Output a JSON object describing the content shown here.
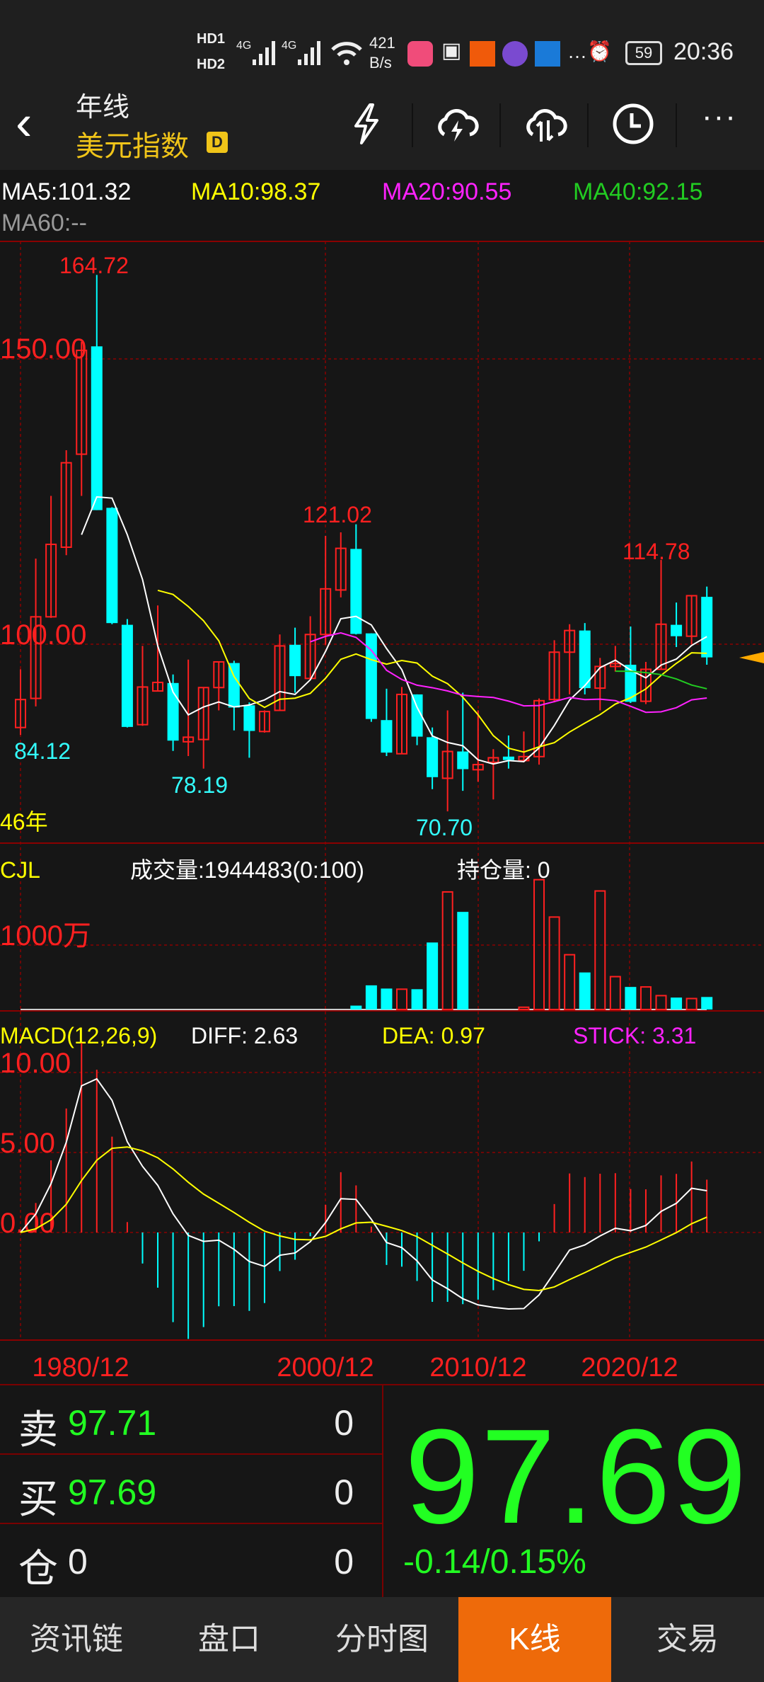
{
  "status": {
    "time": "20:36",
    "battery": "59",
    "net_speed": "421",
    "net_unit": "B/s",
    "sim1": "HD1",
    "sim2": "HD2",
    "net1": "4G",
    "net2": "4G"
  },
  "header": {
    "period": "年线",
    "title": "美元指数",
    "badge": "D",
    "icons": [
      "flash-icon",
      "cloud-flash-icon",
      "cloud-sync-icon",
      "clock-icon",
      "more-icon"
    ]
  },
  "ma": {
    "ma5": "MA5:101.32",
    "ma10": "MA10:98.37",
    "ma20": "MA20:90.55",
    "ma40": "MA40:92.15",
    "ma60": "MA60:--"
  },
  "colors": {
    "up": "#ff2020",
    "down": "#00ffff",
    "ma5": "#ffffff",
    "ma10": "#ffff00",
    "ma20": "#ff22ff",
    "ma40": "#22cc22",
    "grid": "#8a0000",
    "price": "#22ff22"
  },
  "price_axis": {
    "l150": "150.00",
    "l100": "100.00"
  },
  "marks": {
    "high": "164.72",
    "low1": "84.12",
    "low2": "78.19",
    "high2": "121.02",
    "low3": "70.70",
    "high3": "114.78",
    "count": "46年"
  },
  "volume": {
    "label": "CJL",
    "vol": "成交量:1944483(0:100)",
    "oi": "持仓量: 0",
    "axis": "1000万"
  },
  "macd": {
    "label": "MACD(12,26,9)",
    "diff": "DIFF: 2.63",
    "dea": "DEA: 0.97",
    "stick": "STICK: 3.31",
    "a10": "10.00",
    "a5": "5.00",
    "a0": "0.00"
  },
  "dates": [
    "1980/12",
    "2000/12",
    "2010/12",
    "2020/12"
  ],
  "order": {
    "sell_label": "卖",
    "sell_price": "97.71",
    "sell_qty": "0",
    "buy_label": "买",
    "buy_price": "97.69",
    "buy_qty": "0",
    "pos_label": "仓",
    "pos_val": "0",
    "pos_qty": "0",
    "last": "97.69",
    "change": "-0.14/0.15%"
  },
  "nav": [
    "资讯链",
    "盘口",
    "分时图",
    "K线",
    "交易"
  ],
  "nav_active": 3,
  "chart_data": {
    "type": "candlestick",
    "x_start_year": 1976,
    "ohlc": [
      [
        85.4,
        95.6,
        84.1,
        90.3
      ],
      [
        90.5,
        115,
        89.1,
        104.8
      ],
      [
        104.8,
        126,
        104.6,
        117.5
      ],
      [
        117,
        134,
        115.6,
        131.8
      ],
      [
        133.3,
        153,
        126,
        151.5
      ],
      [
        152.2,
        164.72,
        123.5,
        123.5
      ],
      [
        123.9,
        124,
        103.5,
        103.7
      ],
      [
        103.4,
        104.4,
        85.4,
        85.5
      ],
      [
        85.9,
        99.7,
        85.7,
        92.5
      ],
      [
        91.8,
        106.8,
        91.8,
        93.3
      ],
      [
        93.2,
        94.7,
        81.3,
        83.1
      ],
      [
        82.9,
        97.3,
        80.4,
        83.7
      ],
      [
        83.3,
        92.4,
        78.19,
        92.4
      ],
      [
        92.4,
        96.9,
        88.4,
        96.9
      ],
      [
        96.7,
        97.1,
        84.9,
        88.9
      ],
      [
        89.3,
        89.8,
        80.1,
        84.8
      ],
      [
        84.7,
        88.4,
        84.5,
        88.2
      ],
      [
        88.4,
        101.7,
        88.3,
        99.7
      ],
      [
        99.9,
        102.9,
        91.5,
        94.4
      ],
      [
        94.0,
        104.9,
        93.9,
        101.7
      ],
      [
        101.7,
        119,
        99.9,
        109.7
      ],
      [
        109.5,
        119.6,
        108.2,
        116.8
      ],
      [
        116.7,
        121.02,
        101.7,
        101.8
      ],
      [
        101.9,
        101.9,
        86.4,
        86.9
      ],
      [
        86.7,
        92.2,
        80.4,
        81.0
      ],
      [
        80.8,
        92.5,
        80.8,
        91.2
      ],
      [
        91.2,
        91.2,
        82.3,
        83.8
      ],
      [
        83.7,
        85.4,
        74.6,
        76.7
      ],
      [
        76.5,
        88.4,
        70.7,
        81.2
      ],
      [
        81.2,
        91.5,
        74.3,
        78.1
      ],
      [
        78.0,
        88.4,
        75.9,
        78.9
      ],
      [
        79.3,
        81.6,
        72.8,
        80.1
      ],
      [
        80.3,
        84.0,
        78.2,
        79.7
      ],
      [
        79.6,
        84.7,
        79.3,
        80.3
      ],
      [
        80.3,
        90.5,
        78.9,
        90.1
      ],
      [
        90.3,
        100.7,
        89.8,
        98.6
      ],
      [
        98.6,
        103.5,
        91.2,
        102.4
      ],
      [
        102.4,
        103.7,
        91.2,
        92.3
      ],
      [
        92.3,
        97.6,
        88.4,
        96.1
      ],
      [
        96.1,
        99.7,
        95.2,
        96.6
      ],
      [
        96.4,
        103.1,
        89.7,
        89.9
      ],
      [
        90.0,
        96.9,
        89.5,
        95.6
      ],
      [
        95.6,
        114.78,
        95.6,
        103.5
      ],
      [
        103.4,
        107.3,
        99.5,
        101.4
      ],
      [
        101.4,
        108.5,
        100,
        108.5
      ],
      [
        108.3,
        110.1,
        96.4,
        97.69
      ]
    ],
    "volume_wan": [
      0,
      0,
      0,
      0,
      0,
      0,
      0,
      0,
      0,
      0,
      0,
      0,
      0,
      0,
      0,
      0,
      0,
      0,
      0,
      0,
      0,
      0,
      60,
      375,
      325,
      315,
      315,
      1040,
      1825,
      1515,
      0,
      0,
      0,
      35,
      2015,
      1435,
      850,
      575,
      1840,
      510,
      350,
      350,
      215,
      185,
      170,
      194
    ],
    "ylim": [
      62,
      170
    ],
    "ma_periods": [
      5,
      10,
      20,
      40
    ]
  }
}
